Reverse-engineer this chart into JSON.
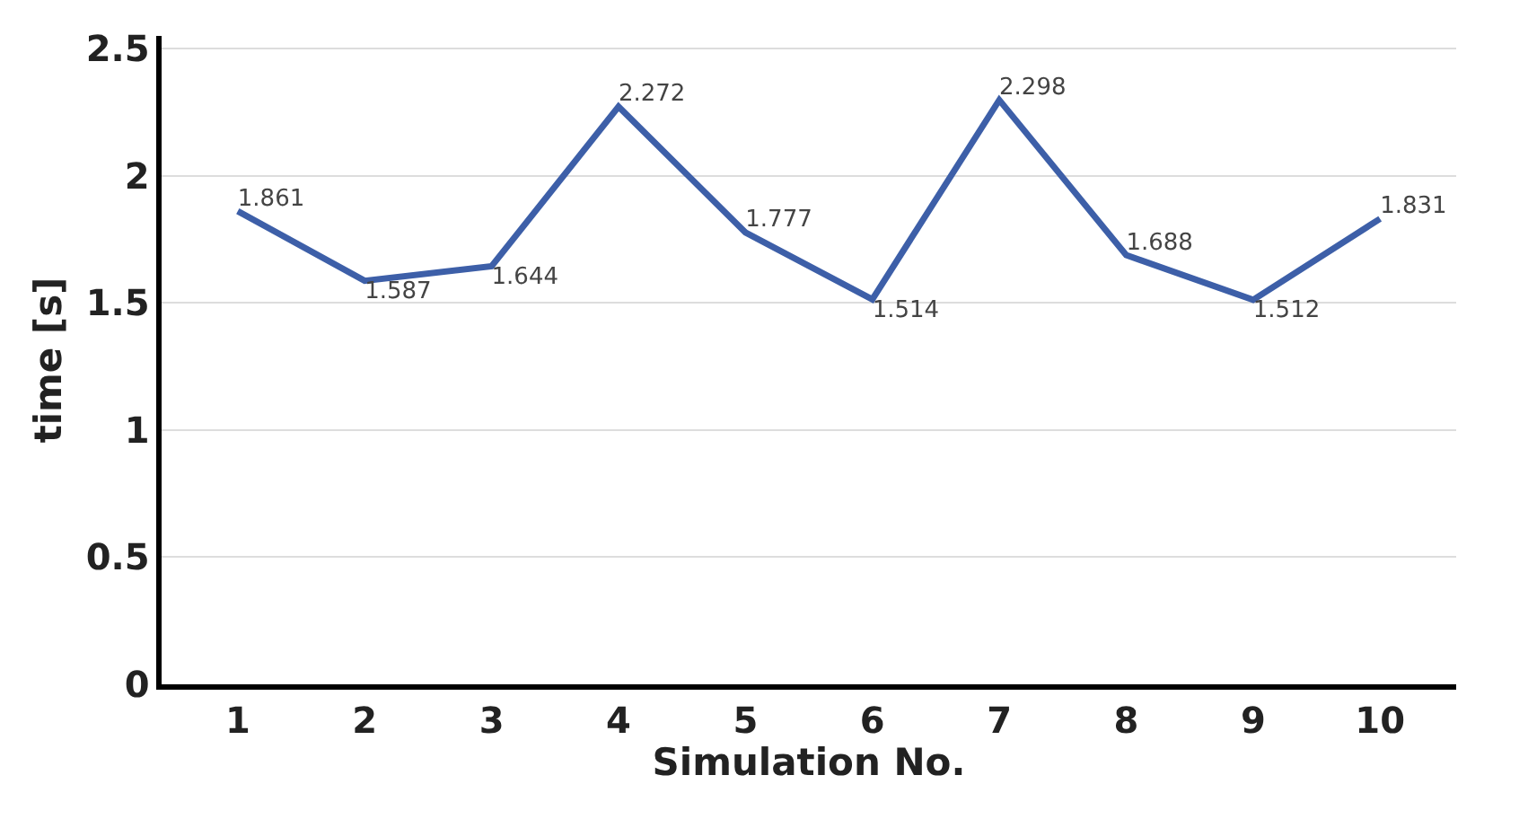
{
  "chart_data": {
    "type": "line",
    "xlabel": "Simulation No.",
    "ylabel": "time [s]",
    "categories": [
      "1",
      "2",
      "3",
      "4",
      "5",
      "6",
      "7",
      "8",
      "9",
      "10"
    ],
    "series": [
      {
        "color": "#3d5fa8",
        "values": [
          1.861,
          1.587,
          1.644,
          2.272,
          1.777,
          1.514,
          2.298,
          1.688,
          1.512,
          1.831
        ]
      }
    ],
    "data_labels": true,
    "ylim": [
      0,
      2.55
    ],
    "yticks": [
      0,
      0.5,
      1,
      1.5,
      2,
      2.5
    ],
    "grid": "y",
    "legend": false,
    "marker": "none",
    "line_style": "solid"
  }
}
